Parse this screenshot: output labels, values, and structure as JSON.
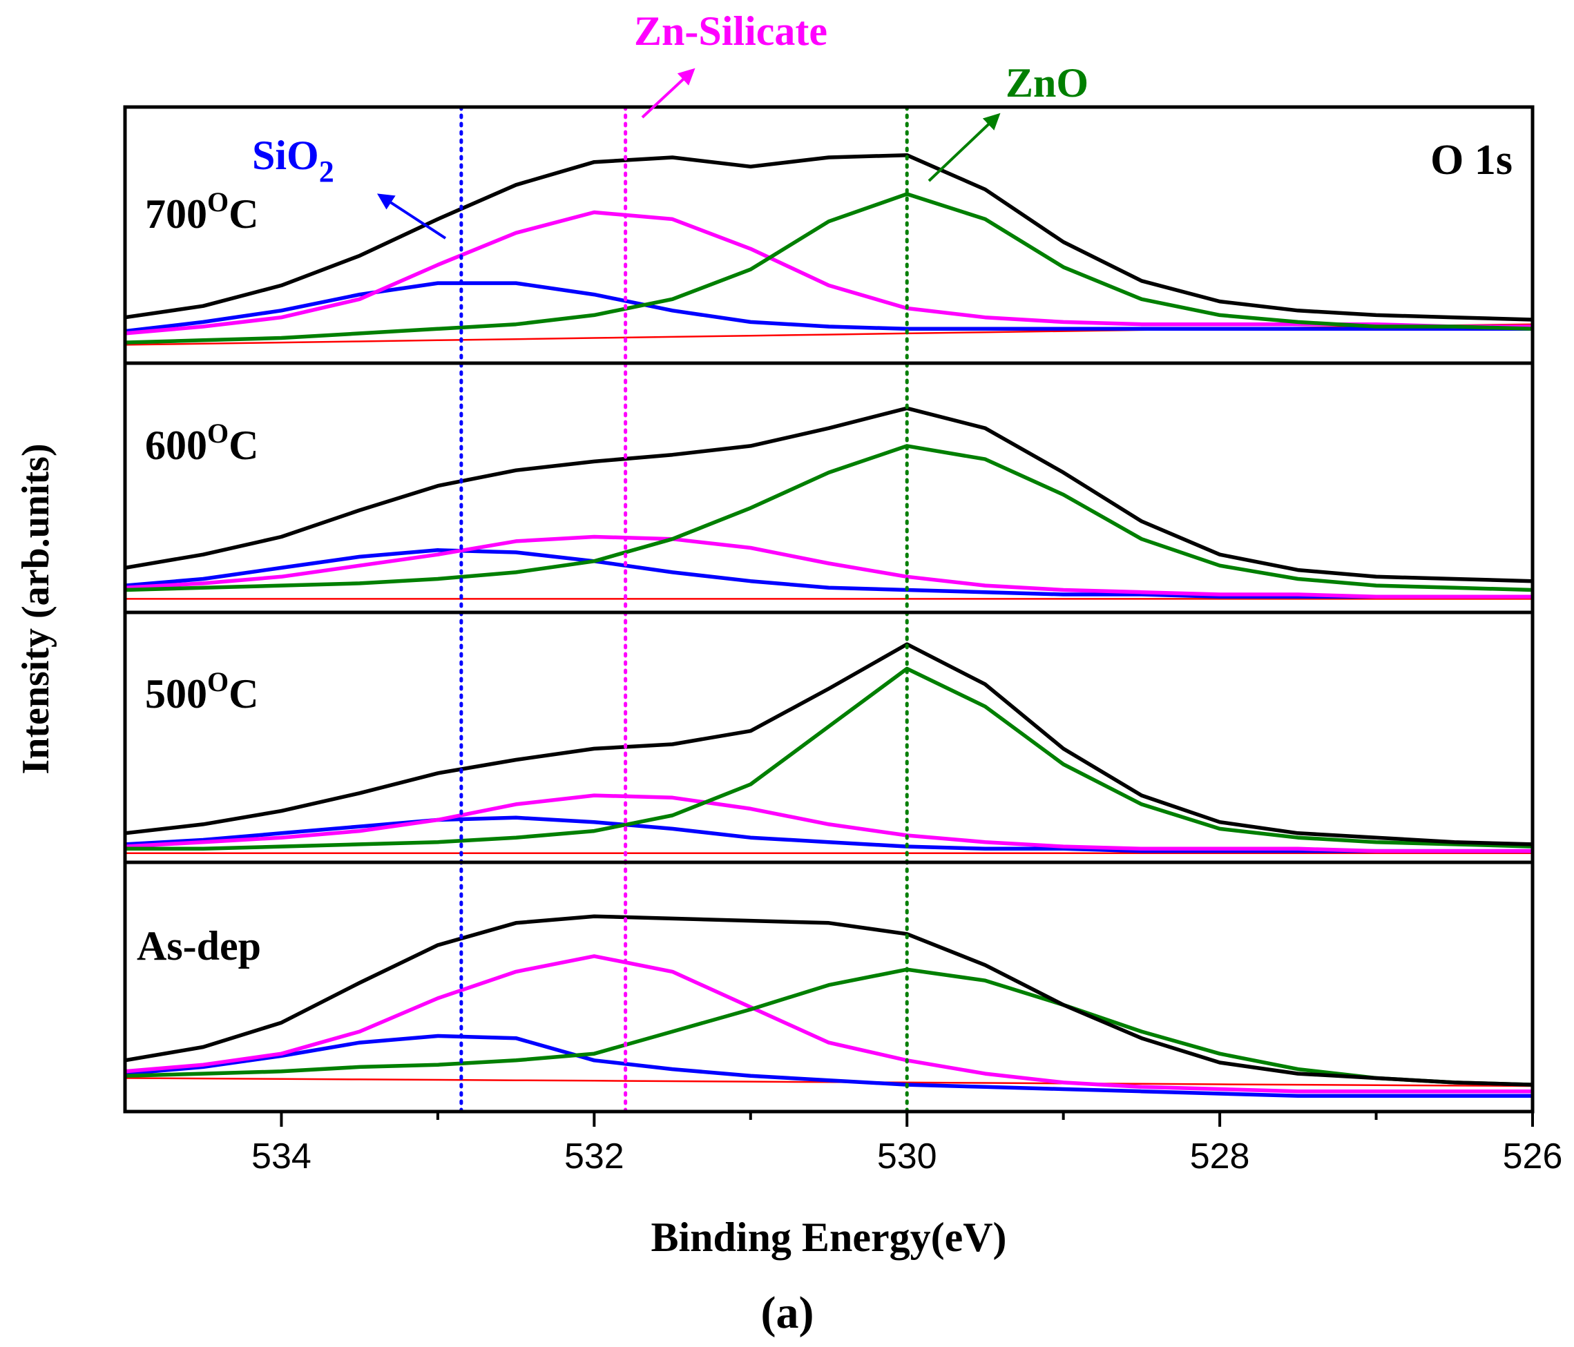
{
  "figure_label": "(a)",
  "chart_data": {
    "type": "line",
    "title": "O 1s",
    "xlabel": "Binding Energy(eV)",
    "ylabel": "Intensity (arb.units)",
    "xlim": [
      535,
      526
    ],
    "x_reversed": true,
    "xticks": [
      534,
      532,
      530,
      528,
      526
    ],
    "reference_lines": [
      {
        "name": "SiO2",
        "x": 532.85,
        "color": "#0000ff"
      },
      {
        "name": "Zn-Silicate",
        "x": 531.8,
        "color": "#ff00ff"
      },
      {
        "name": "ZnO",
        "x": 530.0,
        "color": "#007f00"
      }
    ],
    "annotations": [
      {
        "base": "SiO",
        "sub": "2",
        "color": "#0000ff"
      },
      {
        "text": "Zn-Silicate",
        "color": "#ff00ff"
      },
      {
        "text": "ZnO",
        "color": "#007f00"
      }
    ],
    "colors": {
      "envelope": "#000000",
      "SiO2": "#0000ff",
      "Zn-Silicate": "#ff00ff",
      "ZnO": "#007f00",
      "background": "#ff0000"
    },
    "x": [
      535,
      534.5,
      534,
      533.5,
      533,
      532.5,
      532,
      531.5,
      531,
      530.5,
      530,
      529.5,
      529,
      528.5,
      528,
      527.5,
      527,
      526.5,
      526
    ],
    "panels": [
      {
        "label_base": "700",
        "label_sup": "O",
        "label_unit": "C",
        "ylim": [
          0,
          1
        ],
        "series": [
          {
            "name": "envelope",
            "values": [
              0.17,
              0.22,
              0.31,
              0.44,
              0.6,
              0.75,
              0.85,
              0.87,
              0.83,
              0.87,
              0.88,
              0.73,
              0.5,
              0.33,
              0.24,
              0.2,
              0.18,
              0.17,
              0.16
            ]
          },
          {
            "name": "SiO2",
            "values": [
              0.11,
              0.15,
              0.2,
              0.27,
              0.32,
              0.32,
              0.27,
              0.2,
              0.15,
              0.13,
              0.12,
              0.12,
              0.12,
              0.12,
              0.12,
              0.12,
              0.12,
              0.12,
              0.12
            ]
          },
          {
            "name": "Zn-Silicate",
            "values": [
              0.1,
              0.13,
              0.17,
              0.25,
              0.4,
              0.54,
              0.63,
              0.6,
              0.47,
              0.31,
              0.21,
              0.17,
              0.15,
              0.14,
              0.14,
              0.14,
              0.14,
              0.13,
              0.13
            ]
          },
          {
            "name": "ZnO",
            "values": [
              0.06,
              0.07,
              0.08,
              0.1,
              0.12,
              0.14,
              0.18,
              0.25,
              0.38,
              0.59,
              0.71,
              0.6,
              0.39,
              0.25,
              0.18,
              0.15,
              0.13,
              0.13,
              0.12
            ]
          },
          {
            "name": "background",
            "values": [
              0.05,
              0.055,
              0.06,
              0.065,
              0.07,
              0.075,
              0.08,
              0.085,
              0.09,
              0.095,
              0.1,
              0.105,
              0.11,
              0.115,
              0.12,
              0.125,
              0.13,
              0.135,
              0.14
            ]
          }
        ]
      },
      {
        "label_base": "600",
        "label_sup": "O",
        "label_unit": "C",
        "ylim": [
          0,
          1
        ],
        "series": [
          {
            "name": "envelope",
            "values": [
              0.17,
              0.23,
              0.31,
              0.43,
              0.54,
              0.61,
              0.65,
              0.68,
              0.72,
              0.8,
              0.89,
              0.8,
              0.6,
              0.38,
              0.23,
              0.16,
              0.13,
              0.12,
              0.11
            ]
          },
          {
            "name": "SiO2",
            "values": [
              0.09,
              0.12,
              0.17,
              0.22,
              0.25,
              0.24,
              0.2,
              0.15,
              0.11,
              0.08,
              0.07,
              0.06,
              0.05,
              0.05,
              0.04,
              0.04,
              0.04,
              0.04,
              0.04
            ]
          },
          {
            "name": "Zn-Silicate",
            "values": [
              0.08,
              0.1,
              0.13,
              0.18,
              0.23,
              0.29,
              0.31,
              0.3,
              0.26,
              0.19,
              0.13,
              0.09,
              0.07,
              0.06,
              0.05,
              0.05,
              0.04,
              0.04,
              0.04
            ]
          },
          {
            "name": "ZnO",
            "values": [
              0.07,
              0.08,
              0.09,
              0.1,
              0.12,
              0.15,
              0.2,
              0.3,
              0.44,
              0.6,
              0.72,
              0.66,
              0.5,
              0.3,
              0.18,
              0.12,
              0.09,
              0.08,
              0.07
            ]
          },
          {
            "name": "background",
            "values": [
              0.03,
              0.03,
              0.03,
              0.03,
              0.03,
              0.03,
              0.03,
              0.03,
              0.03,
              0.03,
              0.03,
              0.03,
              0.03,
              0.03,
              0.03,
              0.03,
              0.03,
              0.03,
              0.03
            ]
          }
        ]
      },
      {
        "label_base": "500",
        "label_sup": "O",
        "label_unit": "C",
        "ylim": [
          0,
          1
        ],
        "series": [
          {
            "name": "envelope",
            "values": [
              0.1,
              0.14,
              0.2,
              0.28,
              0.37,
              0.43,
              0.48,
              0.5,
              0.56,
              0.75,
              0.95,
              0.77,
              0.48,
              0.27,
              0.15,
              0.1,
              0.08,
              0.06,
              0.05
            ]
          },
          {
            "name": "SiO2",
            "values": [
              0.05,
              0.07,
              0.1,
              0.13,
              0.16,
              0.17,
              0.15,
              0.12,
              0.08,
              0.06,
              0.04,
              0.03,
              0.03,
              0.02,
              0.02,
              0.02,
              0.02,
              0.02,
              0.02
            ]
          },
          {
            "name": "Zn-Silicate",
            "values": [
              0.04,
              0.06,
              0.08,
              0.11,
              0.16,
              0.23,
              0.27,
              0.26,
              0.21,
              0.14,
              0.09,
              0.06,
              0.04,
              0.03,
              0.03,
              0.03,
              0.02,
              0.02,
              0.02
            ]
          },
          {
            "name": "ZnO",
            "values": [
              0.03,
              0.03,
              0.04,
              0.05,
              0.06,
              0.08,
              0.11,
              0.18,
              0.32,
              0.58,
              0.84,
              0.67,
              0.41,
              0.23,
              0.12,
              0.08,
              0.06,
              0.05,
              0.04
            ]
          },
          {
            "name": "background",
            "values": [
              0.01,
              0.01,
              0.01,
              0.01,
              0.01,
              0.01,
              0.01,
              0.01,
              0.01,
              0.01,
              0.01,
              0.01,
              0.01,
              0.01,
              0.01,
              0.01,
              0.01,
              0.01,
              0.01
            ]
          }
        ]
      },
      {
        "label_base": "As-dep",
        "label_sup": "",
        "label_unit": "",
        "ylim": [
          0,
          1
        ],
        "series": [
          {
            "name": "envelope",
            "values": [
              0.2,
              0.26,
              0.37,
              0.55,
              0.72,
              0.82,
              0.85,
              0.84,
              0.83,
              0.82,
              0.77,
              0.63,
              0.45,
              0.3,
              0.19,
              0.14,
              0.12,
              0.1,
              0.09
            ]
          },
          {
            "name": "SiO2",
            "values": [
              0.14,
              0.17,
              0.22,
              0.28,
              0.31,
              0.3,
              0.2,
              0.16,
              0.13,
              0.11,
              0.09,
              0.08,
              0.07,
              0.06,
              0.05,
              0.04,
              0.04,
              0.04,
              0.04
            ]
          },
          {
            "name": "Zn-Silicate",
            "values": [
              0.15,
              0.18,
              0.23,
              0.33,
              0.48,
              0.6,
              0.67,
              0.6,
              0.44,
              0.28,
              0.2,
              0.14,
              0.1,
              0.08,
              0.07,
              0.06,
              0.06,
              0.06,
              0.06
            ]
          },
          {
            "name": "ZnO",
            "values": [
              0.13,
              0.14,
              0.15,
              0.17,
              0.18,
              0.2,
              0.23,
              0.33,
              0.43,
              0.54,
              0.61,
              0.56,
              0.45,
              0.33,
              0.23,
              0.16,
              0.12,
              0.1,
              0.09
            ]
          },
          {
            "name": "background",
            "values": [
              0.12,
              0.118,
              0.116,
              0.114,
              0.112,
              0.11,
              0.108,
              0.106,
              0.104,
              0.102,
              0.1,
              0.098,
              0.096,
              0.094,
              0.092,
              0.09,
              0.088,
              0.086,
              0.084
            ]
          }
        ]
      }
    ]
  }
}
